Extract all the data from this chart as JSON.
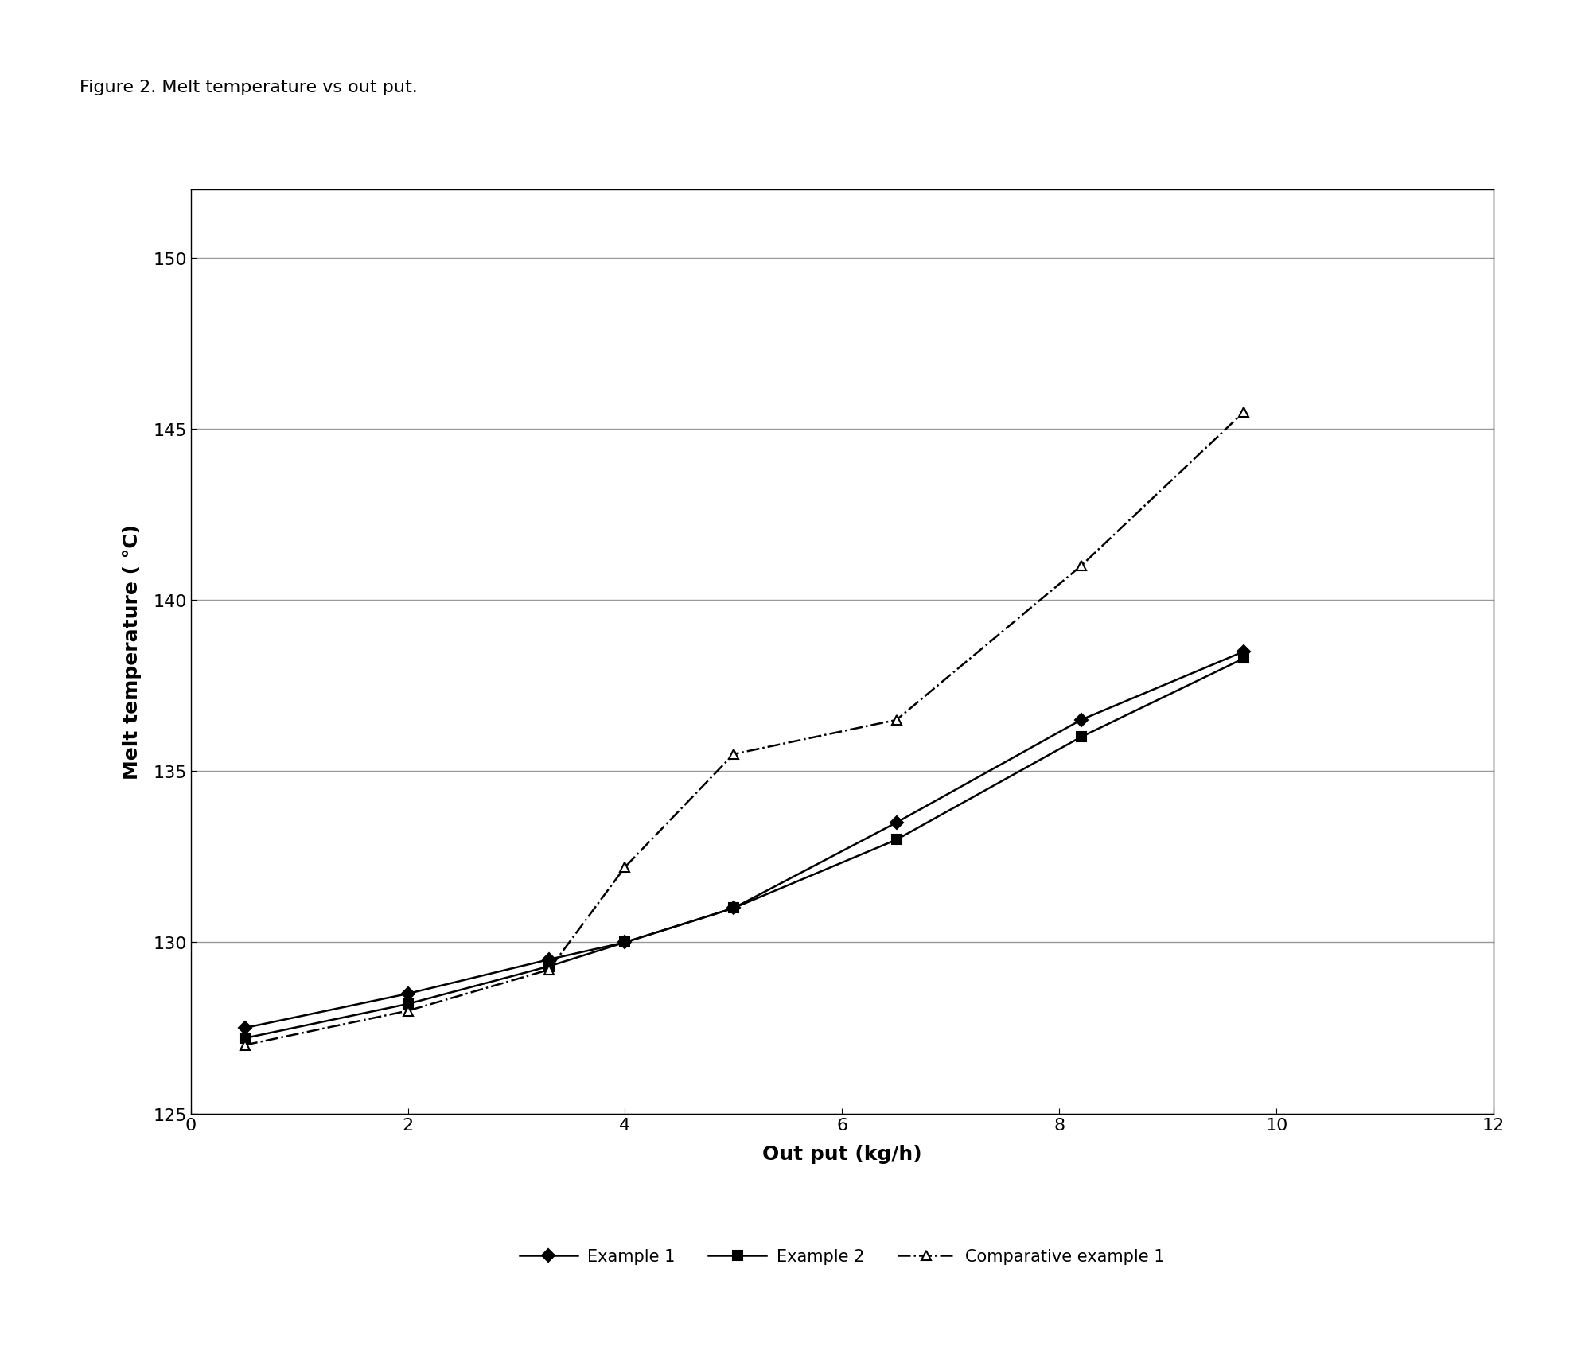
{
  "title": "Figure 2. Melt temperature vs out put.",
  "xlabel": "Out put (kg/h)",
  "ylabel": "Melt temperature ( °C)",
  "xlim": [
    0,
    12
  ],
  "ylim": [
    125,
    152
  ],
  "yticks": [
    125,
    130,
    135,
    140,
    145,
    150
  ],
  "xticks": [
    0,
    2,
    4,
    6,
    8,
    10,
    12
  ],
  "series": [
    {
      "label": "Example 1",
      "x": [
        0.5,
        2.0,
        3.3,
        4.0,
        5.0,
        6.5,
        8.2,
        9.7
      ],
      "y": [
        127.5,
        128.5,
        129.5,
        130.0,
        131.0,
        133.5,
        136.5,
        138.5
      ],
      "color": "#000000",
      "linestyle": "-",
      "linewidth": 1.8,
      "marker": "D",
      "markersize": 8,
      "markerfacecolor": "#000000",
      "markeredgecolor": "#000000"
    },
    {
      "label": "Example 2",
      "x": [
        0.5,
        2.0,
        3.3,
        4.0,
        5.0,
        6.5,
        8.2,
        9.7
      ],
      "y": [
        127.2,
        128.2,
        129.3,
        130.0,
        131.0,
        133.0,
        136.0,
        138.3
      ],
      "color": "#000000",
      "linestyle": "-",
      "linewidth": 1.8,
      "marker": "s",
      "markersize": 8,
      "markerfacecolor": "#000000",
      "markeredgecolor": "#000000"
    },
    {
      "label": "Comparative example 1",
      "x": [
        0.5,
        2.0,
        3.3,
        4.0,
        5.0,
        6.5,
        8.2,
        9.7
      ],
      "y": [
        127.0,
        128.0,
        129.2,
        132.2,
        135.5,
        136.5,
        141.0,
        145.5
      ],
      "color": "#000000",
      "linestyle": "-.",
      "linewidth": 1.8,
      "marker": "^",
      "markersize": 9,
      "markerfacecolor": "white",
      "markeredgecolor": "#000000"
    }
  ],
  "background_color": "#ffffff",
  "grid_color": "#999999",
  "title_fontsize": 16,
  "axis_label_fontsize": 18,
  "tick_fontsize": 16,
  "legend_fontsize": 15
}
